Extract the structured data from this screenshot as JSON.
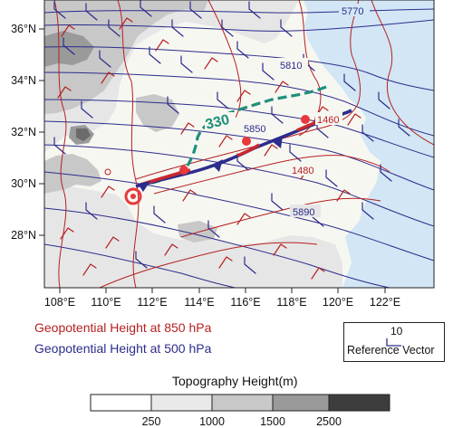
{
  "map": {
    "lon_ticks": [
      "108°E",
      "110°E",
      "112°E",
      "114°E",
      "116°E",
      "118°E",
      "120°E",
      "122°E"
    ],
    "lat_ticks": [
      "36°N",
      "34°N",
      "32°N",
      "30°N",
      "28°N"
    ],
    "contours_500": [
      "5770",
      "5810",
      "5850",
      "5890"
    ],
    "contours_850": [
      "1460",
      "1480"
    ],
    "theta_label": "330"
  },
  "legend": {
    "gph_850": "Geopotential Height at 850 hPa",
    "gph_500": "Geopotential Height at 500 hPa",
    "ref_value": "10",
    "ref_label": "Reference Vector"
  },
  "colorbar": {
    "title": "Topography Height(m)",
    "labels": [
      "250",
      "1000",
      "1500",
      "2500"
    ],
    "colors": [
      "#ffffff",
      "#e9e9e9",
      "#c8c8c8",
      "#9a9a9a",
      "#6b6b6b",
      "#3d3d3d"
    ]
  },
  "colors": {
    "gph_850": "#b52020",
    "gph_500": "#2c2c8c",
    "theta_e": "#1f8f7a",
    "sea": "#d2e6f5",
    "front": "#2c2c8c"
  }
}
